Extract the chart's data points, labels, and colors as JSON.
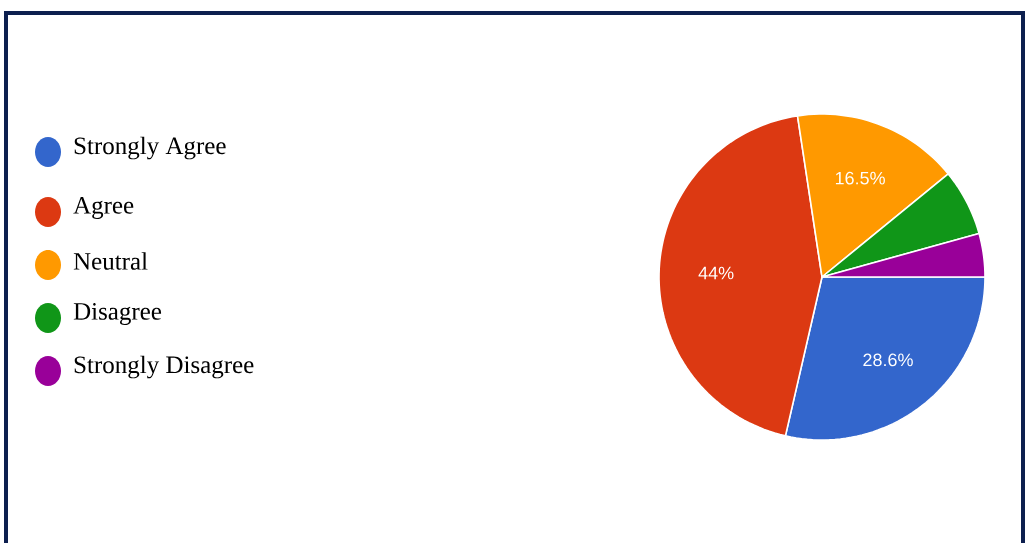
{
  "chart_data": {
    "type": "pie",
    "categories": [
      "Strongly Agree",
      "Agree",
      "Neutral",
      "Disagree",
      "Strongly Disagree"
    ],
    "values": [
      28.6,
      44,
      16.5,
      6.6,
      4.3
    ],
    "colors": [
      "#3366cc",
      "#dc3912",
      "#ff9900",
      "#109618",
      "#990099"
    ],
    "value_labels": [
      "28.6%",
      "44%",
      "16.5%",
      null,
      null
    ],
    "legend": "left"
  }
}
